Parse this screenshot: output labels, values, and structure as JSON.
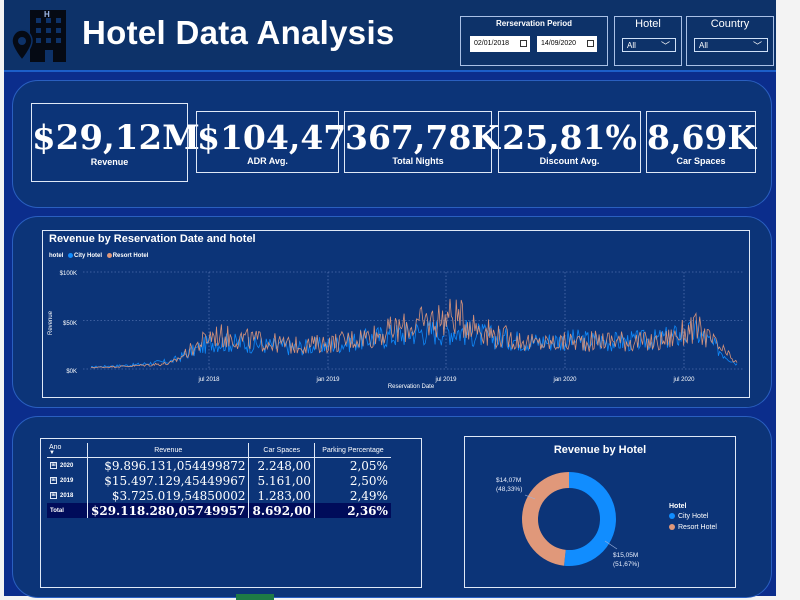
{
  "header": {
    "title": "Hotel Data Analysis",
    "logo_icon": "hotel-location-icon",
    "logo_letter": "H"
  },
  "filters": {
    "period": {
      "label": "Rerservation Period",
      "start": "02/01/2018",
      "end": "14/09/2020"
    },
    "hotel": {
      "label": "Hotel",
      "value": "All"
    },
    "country": {
      "label": "Country",
      "value": "All"
    }
  },
  "kpis": [
    {
      "value": "$29,12M",
      "label": "Revenue"
    },
    {
      "value": "$104,47",
      "label": "ADR Avg."
    },
    {
      "value": "367,78K",
      "label": "Total Nights"
    },
    {
      "value": "25,81%",
      "label": "Discount Avg."
    },
    {
      "value": "8,69K",
      "label": "Car Spaces"
    }
  ],
  "line_chart": {
    "title": "Revenue by Reservation Date and hotel",
    "legend_title": "hotel",
    "legend": [
      "City Hotel",
      "Resort Hotel"
    ],
    "ylabel": "Revenue",
    "xlabel": "Reservation Date",
    "y_ticks": [
      "$100K",
      "$50K",
      "$0K"
    ],
    "x_ticks": [
      "jul 2018",
      "jan 2019",
      "jul 2019",
      "jan 2020",
      "jul 2020"
    ]
  },
  "table": {
    "headers": [
      "Ano",
      "Revenue",
      "Car Spaces",
      "Parking Percentage"
    ],
    "rows": [
      {
        "year": "2020",
        "revenue": "$9.896.131,054499872",
        "cars": "2.248,00",
        "pct": "2,05%"
      },
      {
        "year": "2019",
        "revenue": "$15.497.129,45449967",
        "cars": "5.161,00",
        "pct": "2,50%"
      },
      {
        "year": "2018",
        "revenue": "$3.725.019,54850002",
        "cars": "1.283,00",
        "pct": "2,49%"
      }
    ],
    "total": {
      "label": "Total",
      "revenue": "$29.118.280,05749957",
      "cars": "8.692,00",
      "pct": "2,36%"
    },
    "expand_symbol": "⊞"
  },
  "donut": {
    "title": "Revenue by Hotel",
    "legend_title": "Hotel",
    "resort_label": "$14,07M",
    "resort_pct": "(48,33%)",
    "city_label": "$15,05M",
    "city_pct": "(51,67%)"
  },
  "chart_data": [
    {
      "type": "line",
      "title": "Revenue by Reservation Date and hotel",
      "xlabel": "Reservation Date",
      "ylabel": "Revenue",
      "ylim": [
        0,
        100000
      ],
      "x": [
        "2018-02",
        "2018-04",
        "2018-06",
        "2018-08",
        "2018-10",
        "2018-12",
        "2019-02",
        "2019-04",
        "2019-06",
        "2019-08",
        "2019-10",
        "2019-12",
        "2020-02",
        "2020-04",
        "2020-06",
        "2020-08",
        "2020-09"
      ],
      "series": [
        {
          "name": "City Hotel",
          "color": "#118dff",
          "values": [
            2000,
            4000,
            8000,
            28000,
            26000,
            22000,
            25000,
            32000,
            38000,
            40000,
            32000,
            28000,
            30000,
            28000,
            30000,
            38000,
            5000
          ]
        },
        {
          "name": "Resort Hotel",
          "color": "#e0987a",
          "values": [
            1500,
            3000,
            6000,
            35000,
            30000,
            24000,
            27000,
            35000,
            45000,
            55000,
            35000,
            26000,
            28000,
            30000,
            27000,
            42000,
            6000
          ]
        }
      ],
      "legend": "top-left",
      "grid": true
    },
    {
      "type": "pie",
      "title": "Revenue by Hotel",
      "categories": [
        "City Hotel",
        "Resort Hotel"
      ],
      "values": [
        15.05,
        14.07
      ],
      "percentages": [
        51.67,
        48.33
      ],
      "colors": [
        "#118dff",
        "#e0987a"
      ],
      "legend": "right"
    }
  ]
}
